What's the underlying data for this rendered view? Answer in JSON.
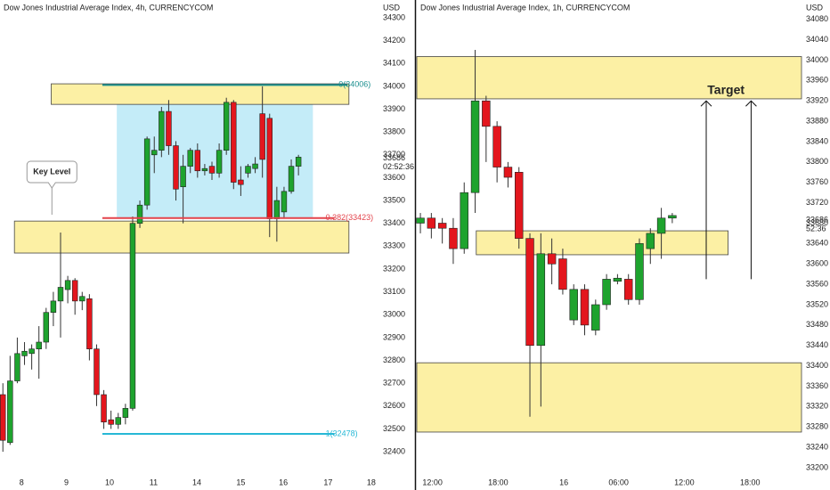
{
  "chart_data": [
    {
      "type": "candlestick",
      "title": "Dow Jones Industrial Average Index, 4h, CURRENCYCOM",
      "unit": "USD",
      "up_color": "#1ea32e",
      "down_color": "#e3161d",
      "x": [
        0,
        1,
        2,
        3,
        4,
        5,
        6,
        7,
        8,
        9,
        10,
        11,
        12,
        13,
        14,
        15,
        16,
        17,
        18,
        19,
        20,
        21,
        22,
        23,
        24,
        25,
        26,
        27,
        28,
        29,
        30,
        31,
        32,
        33,
        34,
        35,
        36,
        37,
        38,
        39,
        40,
        41
      ],
      "open": [
        32650,
        32440,
        32710,
        32820,
        32830,
        32850,
        32880,
        33010,
        33060,
        33110,
        33150,
        33060,
        33070,
        32850,
        32650,
        32540,
        32520,
        32550,
        32590,
        33400,
        33480,
        33700,
        33720,
        33890,
        33740,
        33560,
        33650,
        33720,
        33630,
        33650,
        33620,
        33720,
        33930,
        33590,
        33620,
        33640,
        33880,
        33860,
        33420,
        33450,
        33540,
        33650
      ],
      "high": [
        32700,
        32820,
        32900,
        32880,
        32870,
        32950,
        33030,
        33100,
        33360,
        33170,
        33160,
        33100,
        33090,
        32870,
        32670,
        32580,
        32570,
        32610,
        33430,
        33500,
        33780,
        33780,
        33910,
        33940,
        33760,
        33700,
        33730,
        33750,
        33660,
        33670,
        33750,
        33950,
        33940,
        33650,
        33660,
        33690,
        34000,
        33880,
        33560,
        33560,
        33680,
        33700
      ],
      "low": [
        32400,
        32430,
        32700,
        32780,
        32760,
        32720,
        32850,
        32950,
        32900,
        33050,
        33000,
        33020,
        32800,
        32600,
        32500,
        32500,
        32500,
        32520,
        32580,
        33380,
        33460,
        33620,
        33690,
        33700,
        33500,
        33400,
        33620,
        33600,
        33610,
        33590,
        33600,
        33700,
        33550,
        33520,
        33600,
        33620,
        33600,
        33340,
        33320,
        33420,
        33530,
        33610
      ],
      "close": [
        32450,
        32710,
        32830,
        32840,
        32850,
        32880,
        33010,
        33060,
        33120,
        33150,
        33060,
        33080,
        32850,
        32650,
        32530,
        32520,
        32550,
        32590,
        33400,
        33480,
        33770,
        33720,
        33890,
        33740,
        33550,
        33650,
        33720,
        33630,
        33640,
        33620,
        33720,
        33930,
        33580,
        33570,
        33650,
        33660,
        33680,
        33420,
        33500,
        33540,
        33650,
        33690
      ],
      "xlim": [
        -0.4,
        52.1
      ],
      "ylim": [
        32330,
        34378
      ],
      "yticks": [
        32400,
        32500,
        32600,
        32700,
        32800,
        32900,
        33000,
        33100,
        33200,
        33300,
        33400,
        33500,
        33600,
        33700,
        33800,
        33900,
        34000,
        34100,
        34200,
        34300
      ],
      "xticks": [
        {
          "value": 2.6,
          "label": "8"
        },
        {
          "value": 8.8,
          "label": "9"
        },
        {
          "value": 14.8,
          "label": "10"
        },
        {
          "value": 20.9,
          "label": "11"
        },
        {
          "value": 26.9,
          "label": "14"
        },
        {
          "value": 33,
          "label": "15"
        },
        {
          "value": 38.9,
          "label": "16"
        },
        {
          "value": 45.1,
          "label": "17"
        },
        {
          "value": 51.1,
          "label": "18"
        }
      ],
      "last_price": 33686,
      "countdown": "02:52:36",
      "zones": [
        {
          "x0": 6.7,
          "x1": 48,
          "y0": 33921,
          "y1": 34011
        },
        {
          "x0": 1.6,
          "x1": 48,
          "y0": 33270,
          "y1": 33410
        }
      ],
      "box": {
        "x0": 15.8,
        "x1": 43,
        "y0": 33423,
        "y1": 33921
      },
      "levels": [
        {
          "value": 34006,
          "label": "0(34006)",
          "color": "#1b8f8f",
          "x0": 13.8,
          "x1": 47.8
        },
        {
          "value": 33423,
          "label": "0.382(33423)",
          "color": "#e3434b",
          "x0": 13.8,
          "x1": 46
        },
        {
          "value": 32478,
          "label": "1(32478)",
          "color": "#27b8d6",
          "x0": 13.8,
          "x1": 46
        }
      ],
      "annotations": [
        {
          "text": "Key Level",
          "x": 6.8,
          "y": 33625
        }
      ]
    },
    {
      "type": "candlestick",
      "title": "Dow Jones Industrial Average Index, 1h, CURRENCYCOM",
      "unit": "USD",
      "up_color": "#1ea32e",
      "down_color": "#e3161d",
      "x": [
        0,
        1,
        2,
        3,
        4,
        5,
        6,
        7,
        8,
        9,
        10,
        11,
        12,
        13,
        14,
        15,
        16,
        17,
        18,
        19,
        20,
        21,
        22,
        23
      ],
      "open": [
        33680,
        33690,
        33680,
        33670,
        33630,
        33740,
        33920,
        33870,
        33790,
        33780,
        33650,
        33440,
        33620,
        33610,
        33490,
        33550,
        33470,
        33520,
        33566,
        33570,
        33530,
        33630,
        33660,
        33690
      ],
      "high": [
        33700,
        33700,
        33690,
        33690,
        33760,
        34020,
        33930,
        33880,
        33800,
        33790,
        33660,
        33660,
        33650,
        33630,
        33560,
        33560,
        33530,
        33580,
        33580,
        33580,
        33650,
        33670,
        33710,
        33700
      ],
      "low": [
        33660,
        33650,
        33640,
        33600,
        33620,
        33700,
        33800,
        33760,
        33750,
        33630,
        33300,
        33320,
        33560,
        33540,
        33480,
        33460,
        33460,
        33510,
        33560,
        33520,
        33520,
        33600,
        33610,
        33680
      ],
      "close": [
        33690,
        33670,
        33670,
        33630,
        33740,
        33920,
        33870,
        33790,
        33770,
        33650,
        33440,
        33620,
        33600,
        33550,
        33550,
        33480,
        33520,
        33570,
        33572,
        33530,
        33640,
        33660,
        33690,
        33695
      ],
      "xlim": [
        -0.33,
        34.8
      ],
      "ylim": [
        33200,
        34118
      ],
      "yticks": [
        33200,
        33240,
        33280,
        33320,
        33360,
        33400,
        33440,
        33480,
        33520,
        33560,
        33600,
        33640,
        33680,
        33720,
        33760,
        33800,
        33840,
        33880,
        33920,
        33960,
        34000,
        34040,
        34080
      ],
      "xticks": [
        {
          "value": 1.1,
          "label": "12:00"
        },
        {
          "value": 7.1,
          "label": "18:00"
        },
        {
          "value": 13.1,
          "label": "16"
        },
        {
          "value": 18.1,
          "label": "06:00"
        },
        {
          "value": 24.1,
          "label": "12:00"
        },
        {
          "value": 30.1,
          "label": "18:00"
        }
      ],
      "last_price": 33686,
      "countdown": "52:36",
      "zones": [
        {
          "x0": -0.33,
          "x1": 34.8,
          "y0": 33924,
          "y1": 34007
        },
        {
          "x0": 5.1,
          "x1": 28.1,
          "y0": 33618,
          "y1": 33665
        },
        {
          "x0": -0.33,
          "x1": 34.8,
          "y0": 33270,
          "y1": 33406
        }
      ],
      "arrows": [
        {
          "x": 26.1,
          "from": 33570,
          "to": 33920
        },
        {
          "x": 30.2,
          "from": 33570,
          "to": 33920
        }
      ],
      "annotations": [
        {
          "text": "Target",
          "x": 27.9,
          "y": 33940
        }
      ]
    }
  ]
}
